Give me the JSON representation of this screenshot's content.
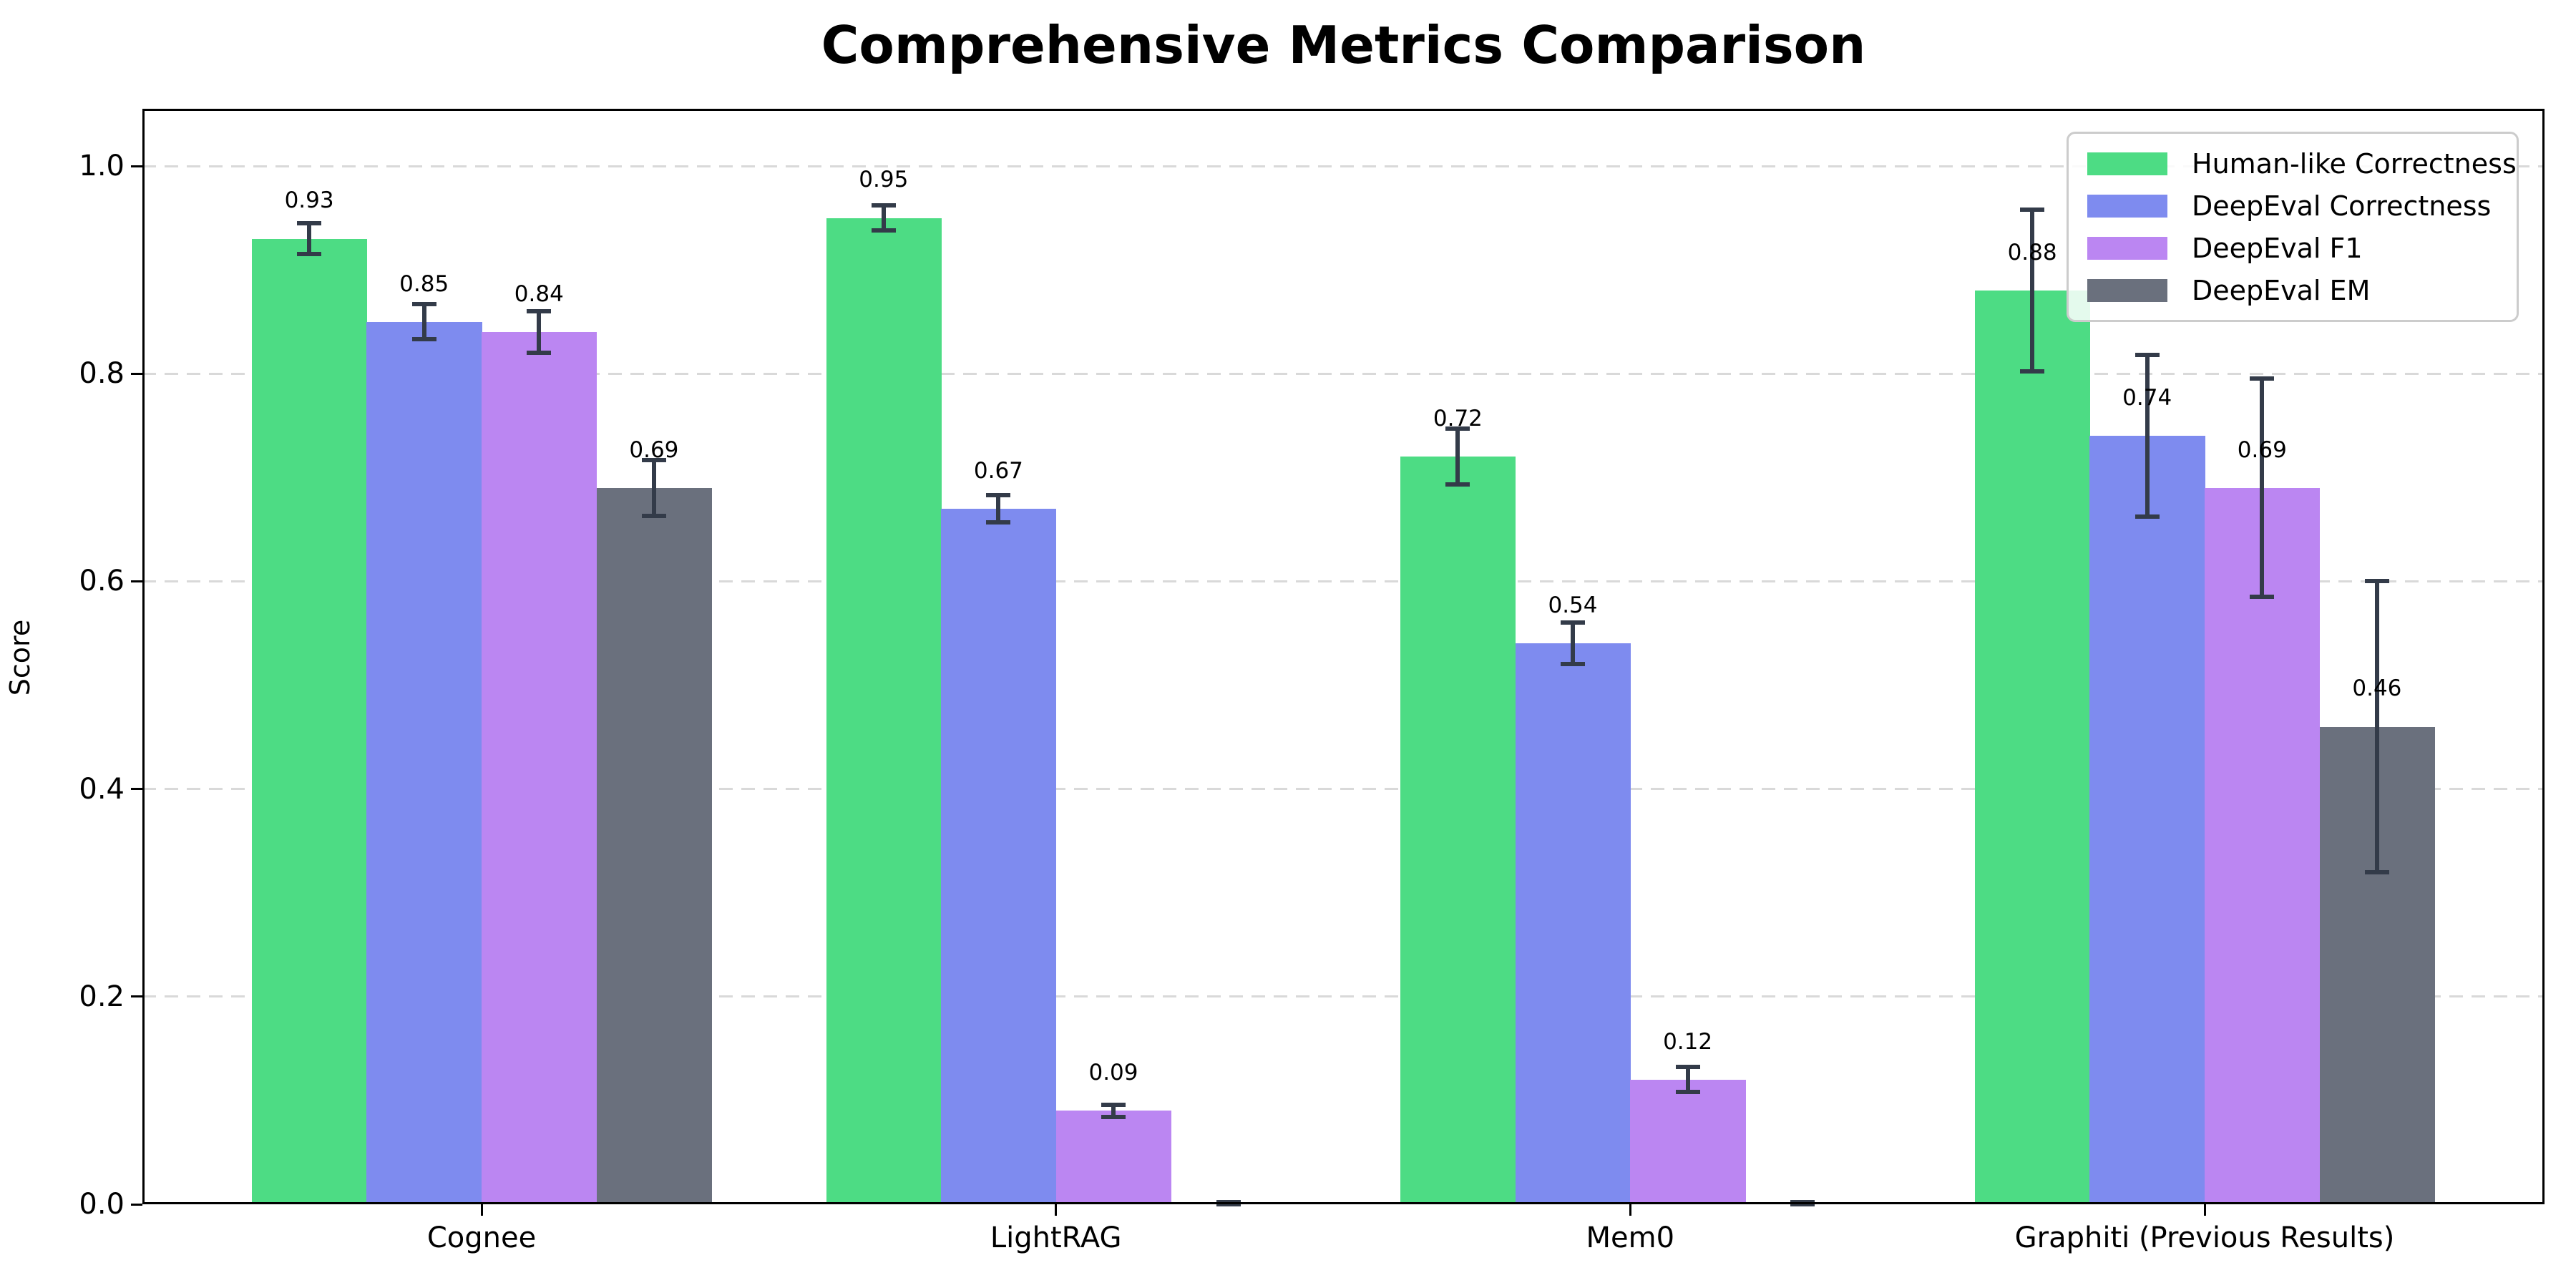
{
  "chart_data": {
    "type": "bar",
    "title": "Comprehensive Metrics Comparison",
    "xlabel": "",
    "ylabel": "Score",
    "categories": [
      "Cognee",
      "LightRAG",
      "Mem0",
      "Graphiti (Previous Results)"
    ],
    "series": [
      {
        "name": "Human-like Correctness",
        "color": "#4ddc84",
        "values": [
          0.93,
          0.95,
          0.72,
          0.88
        ],
        "errors": [
          0.015,
          0.012,
          0.027,
          0.078
        ]
      },
      {
        "name": "DeepEval Correctness",
        "color": "#7e8bef",
        "values": [
          0.85,
          0.67,
          0.54,
          0.74
        ],
        "errors": [
          0.017,
          0.013,
          0.02,
          0.078
        ]
      },
      {
        "name": "DeepEval F1",
        "color": "#bb86f2",
        "values": [
          0.84,
          0.09,
          0.12,
          0.69
        ],
        "errors": [
          0.02,
          0.006,
          0.012,
          0.105
        ]
      },
      {
        "name": "DeepEval EM",
        "color": "#6a707d",
        "values": [
          0.69,
          0.0,
          0.0,
          0.46
        ],
        "errors": [
          0.027,
          0.002,
          0.002,
          0.14
        ]
      }
    ],
    "bar_value_labels": [
      [
        "0.93",
        "0.95",
        "0.72",
        "0.88"
      ],
      [
        "0.85",
        "0.67",
        "0.54",
        "0.74"
      ],
      [
        "0.84",
        "0.09",
        "0.12",
        "0.69"
      ],
      [
        "0.69",
        "",
        "",
        "0.46"
      ]
    ],
    "yticks": [
      "0.0",
      "0.2",
      "0.4",
      "0.6",
      "0.8",
      "1.0"
    ],
    "ylim": [
      0,
      1.054
    ],
    "grid": "horizontal dashed",
    "grid_color": "#d9d9d9",
    "error_bar_color": "#333b49",
    "axis_color": "#000000",
    "legend_position": "upper right"
  }
}
